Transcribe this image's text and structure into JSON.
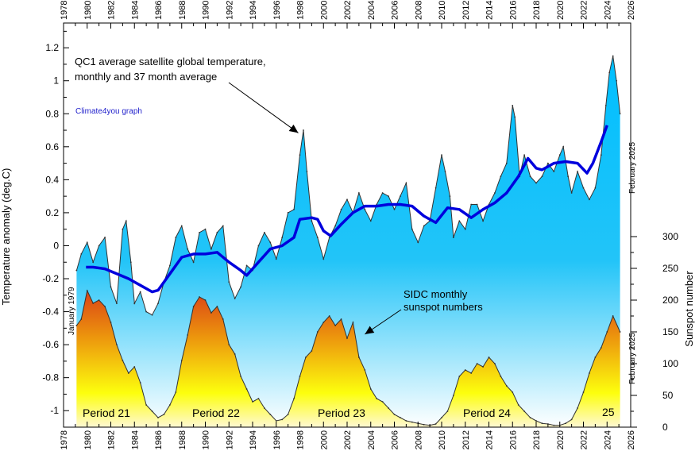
{
  "chart_data": {
    "type": "line",
    "title": "",
    "xlabel": "",
    "ylabel": "Temperature anomaly (deg.C)",
    "ylabel_right": "Sunspot number",
    "xlim": [
      1978,
      2026
    ],
    "ylim": [
      -1.1,
      1.35
    ],
    "ylim_right": [
      0,
      300
    ],
    "x_ticks": [
      1978,
      1980,
      1982,
      1984,
      1986,
      1988,
      1990,
      1992,
      1994,
      1996,
      1998,
      2000,
      2002,
      2004,
      2006,
      2008,
      2010,
      2012,
      2014,
      2016,
      2018,
      2020,
      2022,
      2024,
      2026
    ],
    "y_ticks": [
      -1,
      -0.8,
      -0.6,
      -0.4,
      -0.2,
      0,
      0.2,
      0.4,
      0.6,
      0.8,
      1,
      1.2
    ],
    "y_right_ticks": [
      0,
      50,
      100,
      150,
      200,
      250,
      300
    ],
    "grid": false,
    "series": [
      {
        "name": "QC1 average satellite global temperature, monthly",
        "color": "#00bfff",
        "x": [
          1979.1,
          1979.5,
          1980.0,
          1980.5,
          1981.0,
          1981.5,
          1982.0,
          1982.5,
          1983.0,
          1983.3,
          1983.7,
          1984.0,
          1984.5,
          1985.0,
          1985.5,
          1986.0,
          1986.5,
          1987.0,
          1987.5,
          1988.0,
          1988.5,
          1989.0,
          1989.5,
          1990.0,
          1990.5,
          1991.0,
          1991.5,
          1992.0,
          1992.5,
          1993.0,
          1993.5,
          1994.0,
          1994.5,
          1995.0,
          1995.5,
          1996.0,
          1996.5,
          1997.0,
          1997.5,
          1998.0,
          1998.3,
          1998.6,
          1999.0,
          1999.5,
          2000.0,
          2000.5,
          2001.0,
          2001.5,
          2002.0,
          2002.5,
          2003.0,
          2003.5,
          2004.0,
          2004.5,
          2005.0,
          2005.5,
          2006.0,
          2006.5,
          2007.0,
          2007.5,
          2008.0,
          2008.5,
          2009.0,
          2009.5,
          2010.0,
          2010.3,
          2010.7,
          2011.0,
          2011.5,
          2012.0,
          2012.5,
          2013.0,
          2013.5,
          2014.0,
          2014.5,
          2015.0,
          2015.5,
          2016.0,
          2016.2,
          2016.6,
          2017.0,
          2017.5,
          2018.0,
          2018.5,
          2019.0,
          2019.5,
          2020.0,
          2020.3,
          2020.7,
          2021.0,
          2021.5,
          2022.0,
          2022.5,
          2023.0,
          2023.5,
          2023.9,
          2024.2,
          2024.5,
          2024.8,
          2025.1
        ],
        "values": [
          -0.15,
          -0.05,
          0.02,
          -0.1,
          0.0,
          0.05,
          -0.25,
          -0.35,
          0.1,
          0.15,
          -0.1,
          -0.35,
          -0.28,
          -0.4,
          -0.42,
          -0.35,
          -0.22,
          -0.12,
          0.05,
          0.12,
          -0.02,
          -0.1,
          0.08,
          0.1,
          -0.02,
          0.08,
          0.12,
          -0.22,
          -0.32,
          -0.25,
          -0.12,
          -0.15,
          0.0,
          0.08,
          0.02,
          -0.08,
          0.05,
          0.2,
          0.22,
          0.55,
          0.7,
          0.45,
          0.15,
          0.05,
          -0.08,
          0.05,
          0.12,
          0.22,
          0.28,
          0.2,
          0.32,
          0.22,
          0.15,
          0.25,
          0.32,
          0.3,
          0.22,
          0.3,
          0.38,
          0.1,
          0.02,
          0.12,
          0.15,
          0.35,
          0.55,
          0.45,
          0.3,
          0.05,
          0.15,
          0.1,
          0.25,
          0.25,
          0.15,
          0.25,
          0.32,
          0.42,
          0.5,
          0.85,
          0.78,
          0.42,
          0.55,
          0.42,
          0.38,
          0.42,
          0.5,
          0.45,
          0.55,
          0.6,
          0.42,
          0.32,
          0.45,
          0.35,
          0.28,
          0.35,
          0.55,
          0.85,
          1.05,
          1.15,
          1.0,
          0.8
        ]
      },
      {
        "name": "37 month average",
        "color": "#0000dd",
        "x": [
          1979.9,
          1980.5,
          1981.5,
          1982.5,
          1983.5,
          1984.5,
          1985.5,
          1986.0,
          1987.0,
          1988.0,
          1989.0,
          1990.0,
          1991.0,
          1992.0,
          1993.0,
          1993.5,
          1994.5,
          1995.5,
          1996.5,
          1997.5,
          1998.0,
          1999.0,
          1999.5,
          2000.0,
          2000.6,
          2001.5,
          2002.5,
          2003.5,
          2004.5,
          2005.5,
          2006.5,
          2007.5,
          2008.5,
          2009.5,
          2010.5,
          2011.5,
          2012.5,
          2013.5,
          2014.5,
          2015.5,
          2016.5,
          2017.3,
          2018.0,
          2018.5,
          2019.5,
          2020.5,
          2021.5,
          2022.3,
          2022.8,
          2023.5,
          2024.0
        ],
        "values": [
          -0.13,
          -0.13,
          -0.14,
          -0.17,
          -0.2,
          -0.24,
          -0.28,
          -0.27,
          -0.17,
          -0.07,
          -0.05,
          -0.05,
          -0.04,
          -0.1,
          -0.15,
          -0.18,
          -0.1,
          -0.02,
          0.0,
          0.05,
          0.16,
          0.17,
          0.16,
          0.09,
          0.06,
          0.13,
          0.2,
          0.24,
          0.24,
          0.25,
          0.25,
          0.24,
          0.18,
          0.14,
          0.23,
          0.22,
          0.17,
          0.22,
          0.26,
          0.32,
          0.42,
          0.53,
          0.47,
          0.46,
          0.5,
          0.51,
          0.5,
          0.44,
          0.5,
          0.63,
          0.73
        ]
      },
      {
        "name": "SIDC monthly sunspot numbers",
        "color": "#ff8800",
        "x": [
          1979.1,
          1979.5,
          1980.0,
          1980.5,
          1981.0,
          1981.5,
          1982.0,
          1982.5,
          1983.0,
          1983.5,
          1984.0,
          1984.5,
          1985.0,
          1985.5,
          1986.0,
          1986.5,
          1987.0,
          1987.5,
          1988.0,
          1988.5,
          1989.0,
          1989.5,
          1990.0,
          1990.5,
          1991.0,
          1991.5,
          1992.0,
          1992.5,
          1993.0,
          1993.5,
          1994.0,
          1994.5,
          1995.0,
          1995.5,
          1996.0,
          1996.5,
          1997.0,
          1997.5,
          1998.0,
          1998.5,
          1999.0,
          1999.5,
          2000.0,
          2000.5,
          2001.0,
          2001.5,
          2002.0,
          2002.5,
          2003.0,
          2003.5,
          2004.0,
          2004.5,
          2005.0,
          2005.5,
          2006.0,
          2006.5,
          2007.0,
          2007.5,
          2008.0,
          2008.5,
          2009.0,
          2009.5,
          2010.0,
          2010.5,
          2011.0,
          2011.5,
          2012.0,
          2012.5,
          2013.0,
          2013.5,
          2014.0,
          2014.5,
          2015.0,
          2015.5,
          2016.0,
          2016.5,
          2017.0,
          2017.5,
          2018.0,
          2018.5,
          2019.0,
          2019.5,
          2020.0,
          2020.5,
          2021.0,
          2021.5,
          2022.0,
          2022.5,
          2023.0,
          2023.5,
          2024.0,
          2024.5,
          2025.1
        ],
        "values": [
          160,
          170,
          215,
          195,
          200,
          190,
          165,
          130,
          105,
          85,
          95,
          70,
          35,
          25,
          15,
          20,
          35,
          55,
          105,
          145,
          190,
          205,
          200,
          180,
          190,
          170,
          130,
          115,
          80,
          60,
          40,
          45,
          30,
          20,
          10,
          12,
          20,
          45,
          80,
          110,
          120,
          150,
          165,
          175,
          160,
          170,
          140,
          165,
          110,
          90,
          60,
          45,
          40,
          30,
          20,
          15,
          10,
          8,
          6,
          4,
          3,
          5,
          15,
          25,
          50,
          80,
          90,
          85,
          100,
          95,
          110,
          100,
          80,
          65,
          55,
          35,
          25,
          15,
          10,
          6,
          5,
          3,
          3,
          6,
          12,
          30,
          55,
          85,
          110,
          125,
          150,
          175,
          150
        ]
      }
    ],
    "annotations": [
      {
        "id": "temp_label",
        "lines": [
          "QC1 average satellite global temperature,",
          "monthly and 37 month average"
        ],
        "x": 1998.0,
        "y": 0.65
      },
      {
        "id": "watermark",
        "text": "Climate4you graph"
      },
      {
        "id": "sunspot_label",
        "lines": [
          "SIDC monthly",
          "sunspot numbers"
        ],
        "x": 2003.3,
        "y": 150
      },
      {
        "id": "start_date",
        "text": "January 1979"
      },
      {
        "id": "end_date_temp",
        "text": "February 2025"
      },
      {
        "id": "end_date_sun",
        "text": "February 2025"
      }
    ],
    "periods": [
      {
        "label": "Period 21",
        "x": 1982.3
      },
      {
        "label": "Period 22",
        "x": 1991.2
      },
      {
        "label": "Period 23",
        "x": 2001.8
      },
      {
        "label": "Period 24",
        "x": 2014.0
      },
      {
        "label": "25",
        "x": 2023.8
      }
    ]
  }
}
